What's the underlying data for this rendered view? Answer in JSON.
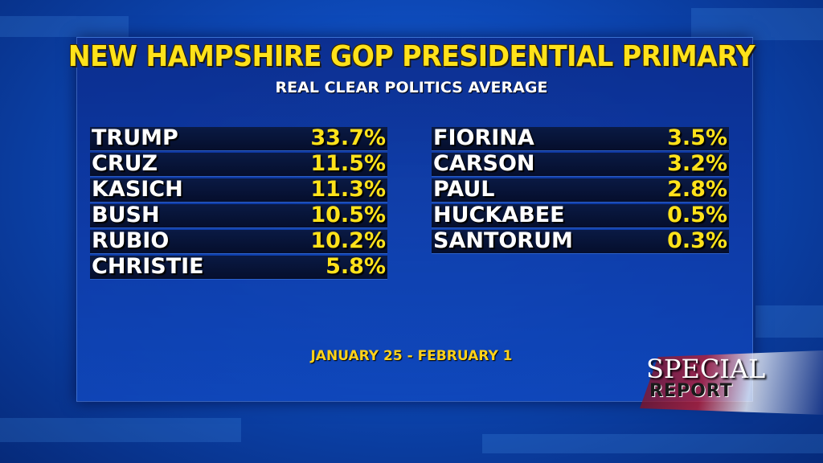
{
  "title": "NEW HAMPSHIRE GOP PRESIDENTIAL PRIMARY",
  "subtitle": "REAL CLEAR POLITICS AVERAGE",
  "date_range": "JANUARY 25 - FEBRUARY 1",
  "logo": {
    "line1": "SPECIAL",
    "line2": "REPORT"
  },
  "colors": {
    "title": "#ffe21a",
    "values": "#ffe21a",
    "names": "#ffffff",
    "background": "#0d49b8"
  },
  "chart_data": {
    "type": "table",
    "title": "NEW HAMPSHIRE GOP PRESIDENTIAL PRIMARY",
    "subtitle": "REAL CLEAR POLITICS AVERAGE",
    "columns": [
      {
        "rows": [
          {
            "name": "TRUMP",
            "value": "33.7%"
          },
          {
            "name": "CRUZ",
            "value": "11.5%"
          },
          {
            "name": "KASICH",
            "value": "11.3%"
          },
          {
            "name": "BUSH",
            "value": "10.5%"
          },
          {
            "name": "RUBIO",
            "value": "10.2%"
          },
          {
            "name": "CHRISTIE",
            "value": "5.8%"
          }
        ]
      },
      {
        "rows": [
          {
            "name": "FIORINA",
            "value": "3.5%"
          },
          {
            "name": "CARSON",
            "value": "3.2%"
          },
          {
            "name": "PAUL",
            "value": "2.8%"
          },
          {
            "name": "HUCKABEE",
            "value": "0.5%"
          },
          {
            "name": "SANTORUM",
            "value": "0.3%"
          }
        ]
      }
    ]
  }
}
